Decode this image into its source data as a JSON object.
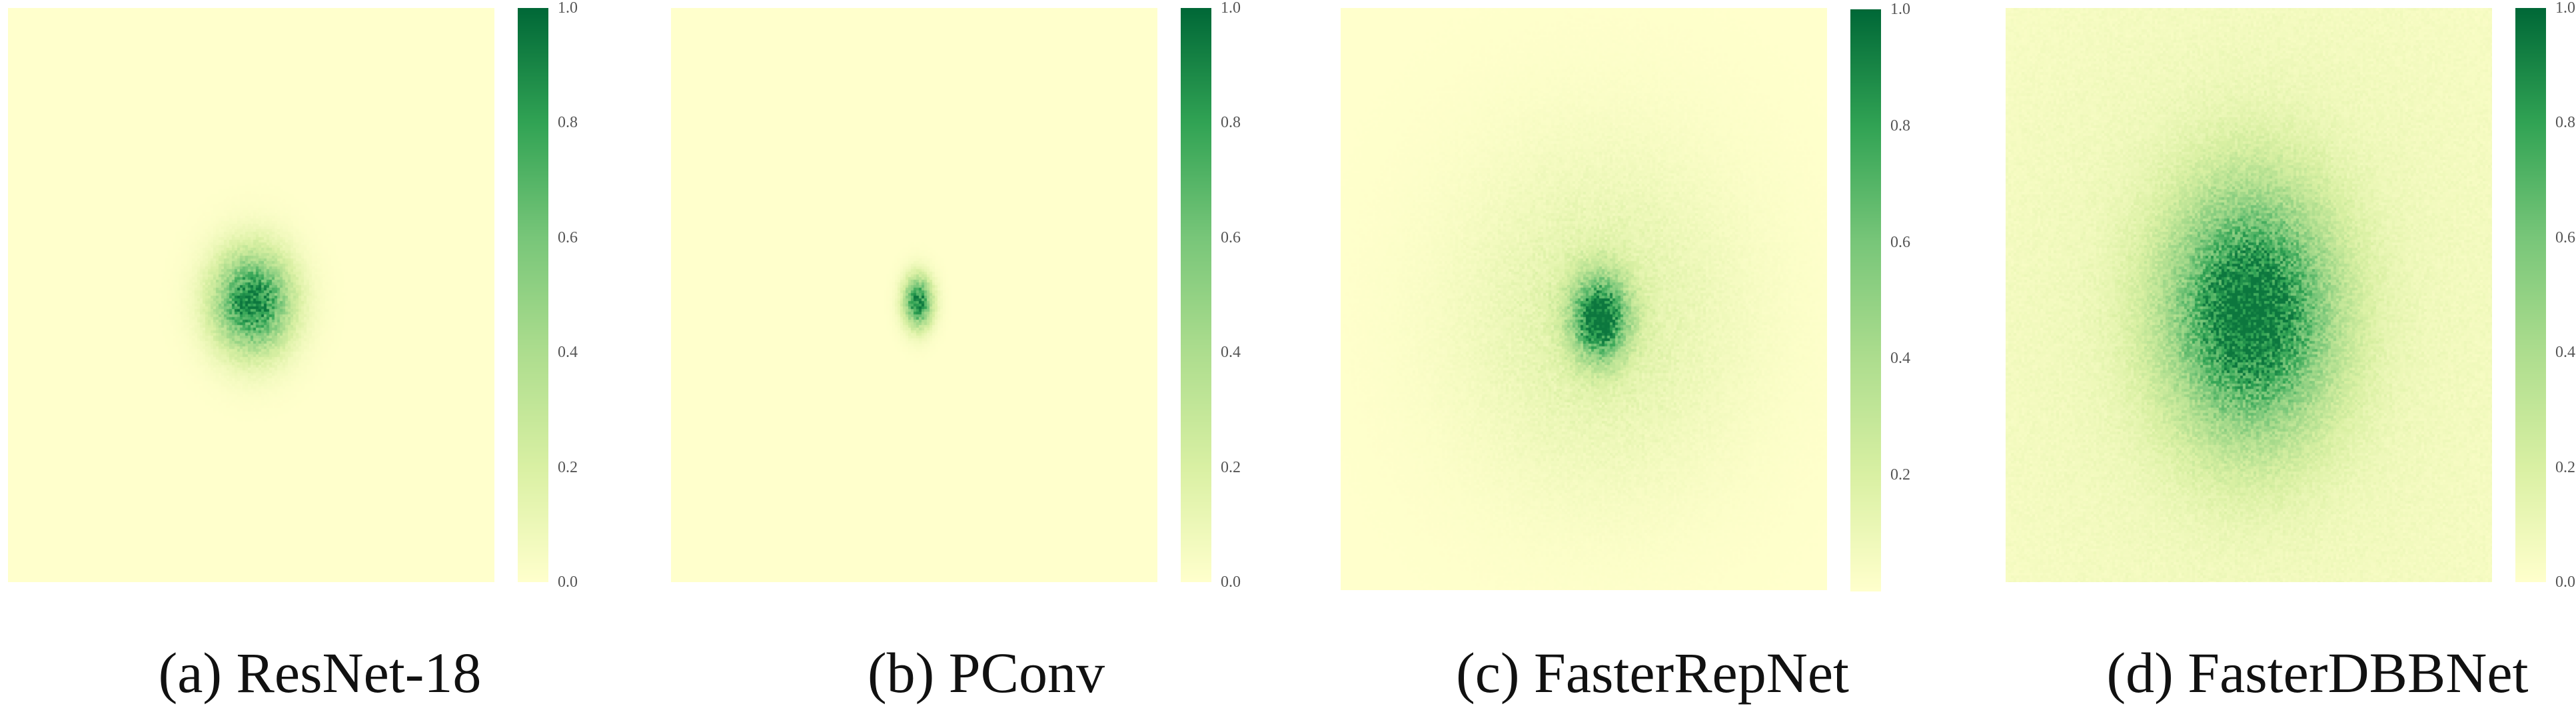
{
  "chart_data": [
    {
      "type": "heatmap",
      "title": "(a) ResNet-18",
      "colorbar": {
        "range": [
          0.0,
          1.0
        ],
        "ticks": [
          "0.0",
          "0.2",
          "0.4",
          "0.6",
          "0.8",
          "1.0"
        ],
        "colormap": "YlGn"
      },
      "peak": {
        "value": 1.0,
        "cx": 0.5,
        "cy": 0.51,
        "spread_x": 0.055,
        "spread_y": 0.06,
        "halo": 0.0
      }
    },
    {
      "type": "heatmap",
      "title": "(b) PConv",
      "colorbar": {
        "range": [
          0.0,
          1.0
        ],
        "ticks": [
          "0.0",
          "0.2",
          "0.4",
          "0.6",
          "0.8",
          "1.0"
        ],
        "colormap": "YlGn"
      },
      "peak": {
        "value": 1.0,
        "cx": 0.505,
        "cy": 0.51,
        "spread_x": 0.02,
        "spread_y": 0.03,
        "halo": 0.0
      }
    },
    {
      "type": "heatmap",
      "title": "(c) FasterRepNet",
      "colorbar": {
        "range": [
          0.0,
          1.0
        ],
        "ticks": [
          "0.2",
          "0.4",
          "0.6",
          "0.8",
          "1.0"
        ],
        "colormap": "YlGn"
      },
      "peak": {
        "value": 1.0,
        "cx": 0.53,
        "cy": 0.53,
        "spread_x": 0.04,
        "spread_y": 0.05,
        "halo": 0.22
      }
    },
    {
      "type": "heatmap",
      "title": "(d) FasterDBBNet",
      "colorbar": {
        "range": [
          0.0,
          1.0
        ],
        "ticks": [
          "0.0",
          "0.2",
          "0.4",
          "0.6",
          "0.8",
          "1.0"
        ],
        "colormap": "YlGn"
      },
      "peak": {
        "value": 1.0,
        "cx": 0.5,
        "cy": 0.53,
        "spread_x": 0.12,
        "spread_y": 0.15,
        "halo": 0.12
      }
    }
  ]
}
